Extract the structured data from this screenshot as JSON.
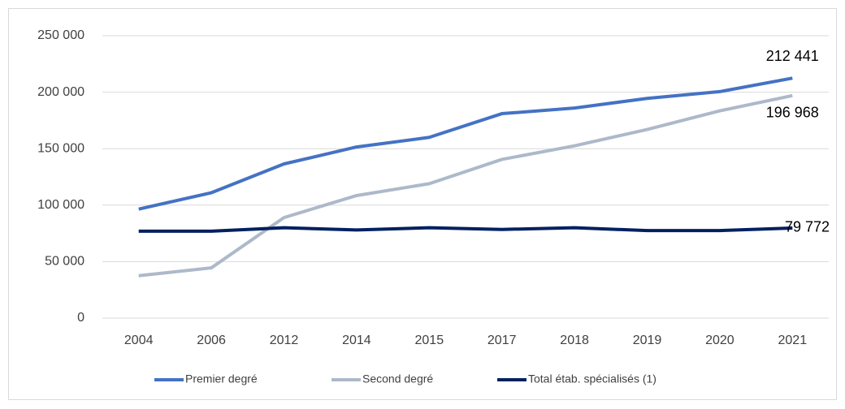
{
  "chart_data": {
    "type": "line",
    "categories": [
      "2004",
      "2006",
      "2012",
      "2014",
      "2015",
      "2017",
      "2018",
      "2019",
      "2020",
      "2021"
    ],
    "series": [
      {
        "name": "Premier degré",
        "color": "#4472c4",
        "values": [
          96500,
          111000,
          136500,
          151500,
          160000,
          181000,
          186000,
          194500,
          200500,
          212441
        ],
        "value_labels": [
          null,
          null,
          null,
          null,
          null,
          null,
          null,
          null,
          null,
          "212 441"
        ]
      },
      {
        "name": "Second degré",
        "color": "#adb9ca",
        "values": [
          37500,
          44500,
          89000,
          108500,
          119000,
          140500,
          152500,
          167000,
          183500,
          196968
        ],
        "value_labels": [
          null,
          null,
          null,
          null,
          null,
          null,
          null,
          null,
          null,
          "196 968"
        ]
      },
      {
        "name": "Total étab. spécialisés (1)",
        "color": "#002060",
        "values": [
          77000,
          77000,
          80000,
          78000,
          80000,
          78500,
          80000,
          77500,
          77500,
          79772
        ],
        "value_labels": [
          null,
          null,
          null,
          null,
          null,
          null,
          null,
          null,
          null,
          "79 772"
        ]
      }
    ],
    "ylim": [
      0,
      250000
    ],
    "yticks": [
      0,
      {
        "value": 50000,
        "label": "50 000"
      },
      {
        "value": 100000,
        "label": "100 000"
      },
      {
        "value": 150000,
        "label": "150 000"
      },
      {
        "value": 200000,
        "label": "200 000"
      },
      {
        "value": 250000,
        "label": "250 000"
      }
    ],
    "grid": true,
    "legend": "bottom"
  }
}
